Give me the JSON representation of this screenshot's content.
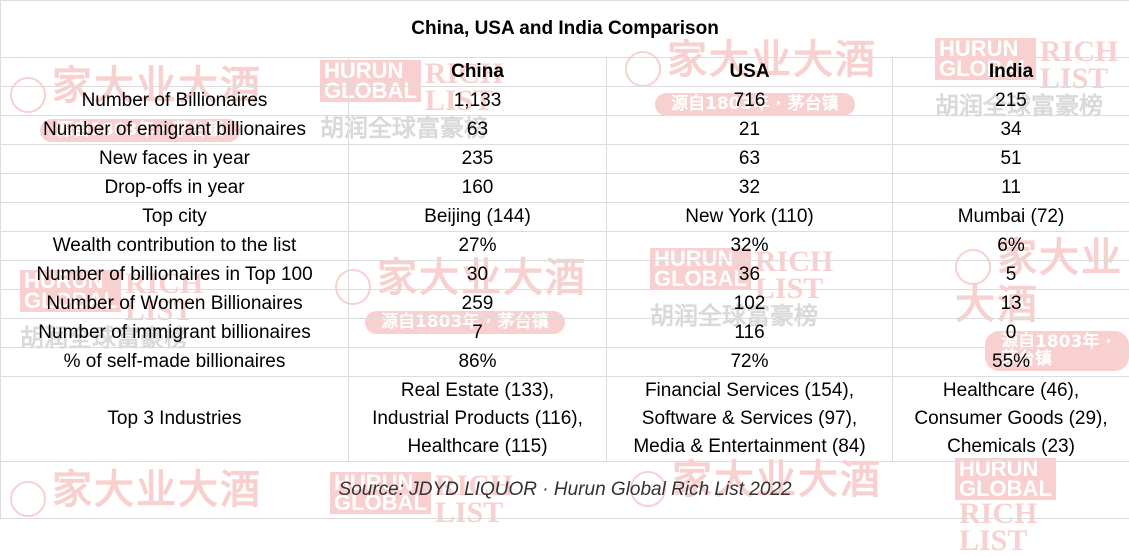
{
  "chart_data": {
    "type": "table",
    "title": "China, USA and India Comparison",
    "columns": [
      "",
      "China",
      "USA",
      "India"
    ],
    "rows": [
      {
        "label": "Number of Billionaires",
        "China": "1,133",
        "USA": "716",
        "India": "215"
      },
      {
        "label": "Number of emigrant billionaires",
        "China": "63",
        "USA": "21",
        "India": "34"
      },
      {
        "label": "New faces in year",
        "China": "235",
        "USA": "63",
        "India": "51"
      },
      {
        "label": "Drop-offs in year",
        "China": "160",
        "USA": "32",
        "India": "11"
      },
      {
        "label": "Top city",
        "China": "Beijing (144)",
        "USA": "New York (110)",
        "India": "Mumbai (72)"
      },
      {
        "label": "Wealth contribution to the list",
        "China": "27%",
        "USA": "32%",
        "India": "6%"
      },
      {
        "label": "Number of billionaires in Top 100",
        "China": "30",
        "USA": "36",
        "India": "5"
      },
      {
        "label": "Number of Women Billionaires",
        "China": "259",
        "USA": "102",
        "India": "13"
      },
      {
        "label": "Number of immigrant billionaires",
        "China": "7",
        "USA": "116",
        "India": "0"
      },
      {
        "label": "% of self-made billionaires",
        "China": "86%",
        "USA": "72%",
        "India": "55%"
      }
    ],
    "industries": {
      "label": "Top 3 Industries",
      "China": [
        "Real Estate (133),",
        "Industrial Products (116),",
        "Healthcare (115)"
      ],
      "USA": [
        "Financial Services (154),",
        "Software & Services (97),",
        "Media & Entertainment (84)"
      ],
      "India": [
        "Healthcare (46),",
        "Consumer Goods (29),",
        "Chemicals (23)"
      ]
    },
    "source": "Source: JDYD LIQUOR · Hurun Global Rich List 2022"
  },
  "watermarks": {
    "brand_cn": "家大业大酒",
    "brand_sub": "源自1803年 · 茅台镇",
    "hurun_top": "HURUN",
    "hurun_bottom": "GLOBAL",
    "hurun_rich": "RICH",
    "hurun_list": "LIST",
    "hurun_cn": "胡润全球富豪榜"
  },
  "colors": {
    "watermark": "#e0302a",
    "grid": "#dcdcdc"
  }
}
